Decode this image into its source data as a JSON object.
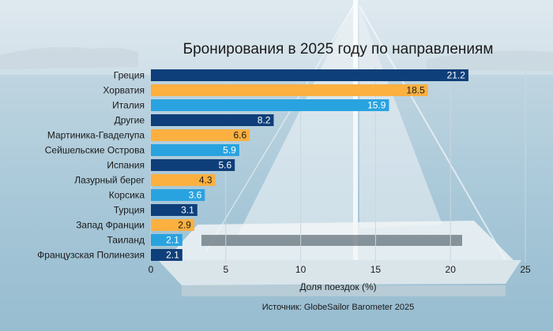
{
  "chart_data": {
    "type": "bar",
    "orientation": "horizontal",
    "title": "Бронирования в 2025 году по направлениям",
    "xlabel": "Доля поездок (%)",
    "source": "Источник: GlobeSailor Barometer 2025",
    "xlim": [
      0,
      25
    ],
    "xticks": [
      0,
      5,
      10,
      15,
      20,
      25
    ],
    "grid": true,
    "categories": [
      "Греция",
      "Хорватия",
      "Италия",
      "Другие",
      "Мартиника-Гваделупа",
      "Сейшельские Острова",
      "Испания",
      "Лазурный берег",
      "Корсика",
      "Турция",
      "Запад Франции",
      "Таиланд",
      "Французская Полинезия"
    ],
    "values": [
      21.2,
      18.5,
      15.9,
      8.2,
      6.6,
      5.9,
      5.6,
      4.3,
      3.6,
      3.1,
      2.9,
      2.1,
      2.1
    ],
    "value_labels": [
      "21.2",
      "18.5",
      "15.9",
      "8.2",
      "6.6",
      "5.9",
      "5.6",
      "4.3",
      "3.6",
      "3.1",
      "2.9",
      "2.1",
      "2.1"
    ],
    "bar_colors": [
      "#0f3f7a",
      "#fbb040",
      "#29a3e0",
      "#0f3f7a",
      "#fbb040",
      "#29a3e0",
      "#0f3f7a",
      "#fbb040",
      "#29a3e0",
      "#0f3f7a",
      "#fbb040",
      "#29a3e0",
      "#0f3f7a"
    ],
    "label_colors": [
      "#ffffff",
      "#1a1a1a",
      "#ffffff",
      "#ffffff",
      "#1a1a1a",
      "#ffffff",
      "#ffffff",
      "#1a1a1a",
      "#ffffff",
      "#ffffff",
      "#1a1a1a",
      "#ffffff",
      "#ffffff"
    ]
  }
}
